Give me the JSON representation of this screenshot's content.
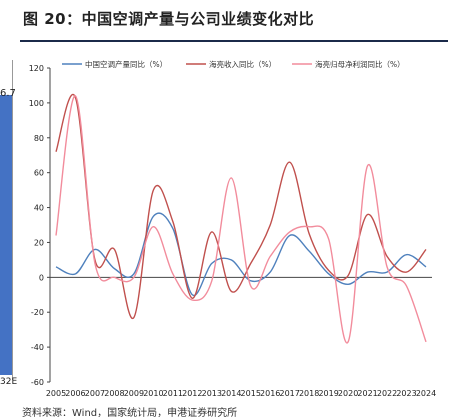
{
  "title": "图 20：中国空调产量与公司业绩变化对比",
  "left_panel": {
    "value_label": "6.7",
    "tick_label": "32E"
  },
  "bottom_text": "资料来源：Wind，国家统计局，申港证券研究所",
  "colors": {
    "series1": "#4f81bd",
    "series2": "#c0504d",
    "series3": "#f28c9c",
    "left_bar": "#4472c4"
  },
  "chart_data": {
    "type": "line",
    "title": "",
    "xlabel": "",
    "ylabel": "",
    "x": [
      "2005",
      "2006",
      "2007",
      "2008",
      "2009",
      "2010",
      "2011",
      "2012",
      "2013",
      "2014",
      "2015",
      "2016",
      "2017",
      "2018",
      "2019",
      "2020",
      "2021",
      "2022",
      "2023",
      "2024"
    ],
    "ylim": [
      -60,
      120
    ],
    "yticks": [
      -60,
      -40,
      -20,
      0,
      20,
      40,
      60,
      80,
      100,
      120
    ],
    "legend_position": "top",
    "grid": false,
    "series": [
      {
        "name": "中国空调产量同比（%）",
        "color": "#4f81bd",
        "values": [
          6,
          2,
          16,
          5,
          2,
          35,
          28,
          -10,
          8,
          10,
          -2,
          3,
          24,
          15,
          2,
          -4,
          3,
          3,
          13,
          6
        ]
      },
      {
        "name": "海亮收入同比（%）",
        "color": "#c0504d",
        "values": [
          72,
          103,
          10,
          16,
          -23,
          50,
          32,
          -12,
          26,
          -8,
          8,
          30,
          66,
          25,
          4,
          1,
          36,
          12,
          3,
          16
        ]
      },
      {
        "name": "海亮归母净利润同比（%）",
        "color": "#f28c9c",
        "values": [
          24,
          104,
          8,
          0,
          0,
          29,
          2,
          -13,
          -2,
          57,
          -5,
          12,
          26,
          29,
          22,
          -37,
          64,
          6,
          -5,
          -37
        ]
      }
    ]
  }
}
